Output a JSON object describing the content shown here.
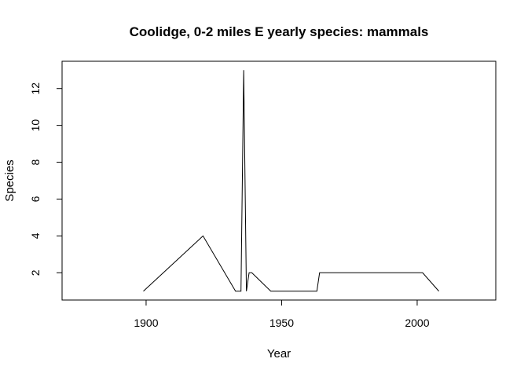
{
  "chart_data": {
    "type": "line",
    "title": "Coolidge, 0-2 miles E yearly species: mammals",
    "xlabel": "Year",
    "ylabel": "Species",
    "xlim": [
      1869,
      2029
    ],
    "ylim": [
      0.52,
      13.48
    ],
    "x_ticks": [
      1900,
      1950,
      2000
    ],
    "y_ticks": [
      2,
      4,
      6,
      8,
      10,
      12
    ],
    "grid": false,
    "legend": "none",
    "line_color": "#000000",
    "series": [
      {
        "x": [
          1899,
          1921,
          1933,
          1935,
          1936,
          1937,
          1938,
          1939,
          1946,
          1963,
          1964,
          2002,
          2008
        ],
        "values": [
          1,
          4,
          1,
          1,
          13,
          1,
          2,
          2,
          1,
          1,
          2,
          2,
          1
        ]
      }
    ]
  }
}
